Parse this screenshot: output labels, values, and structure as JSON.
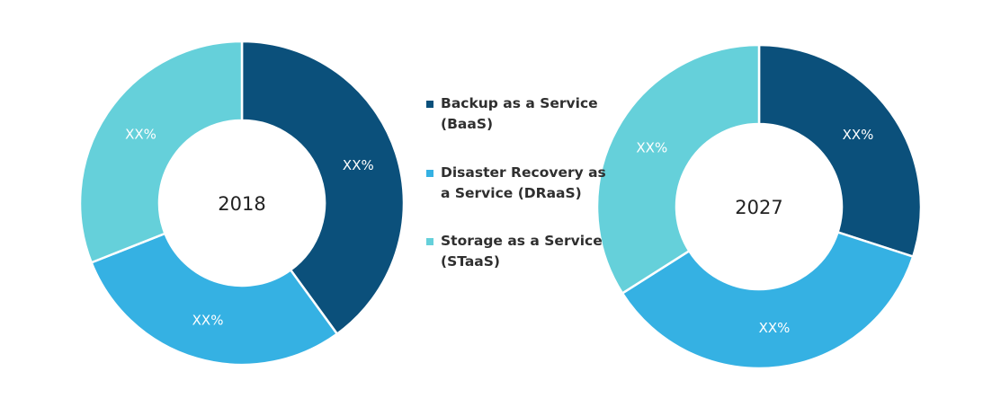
{
  "chart_data": [
    {
      "type": "donut",
      "center_label": "2018",
      "categories": [
        "Backup as a Service (BaaS)",
        "Disaster Recovery as a Service (DRaaS)",
        "Storage as a Service (STaaS)"
      ],
      "values": [
        40,
        29,
        31
      ],
      "data_labels": [
        "XX%",
        "XX%",
        "XX%"
      ]
    },
    {
      "type": "donut",
      "center_label": "2027",
      "categories": [
        "Backup as a Service (BaaS)",
        "Disaster Recovery as a Service (DRaaS)",
        "Storage as a Service (STaaS)"
      ],
      "values": [
        30,
        36,
        34
      ],
      "data_labels": [
        "XX%",
        "XX%",
        "XX%"
      ]
    }
  ],
  "legend": [
    {
      "label": "Backup as a Service (BaaS)",
      "color": "#0b507b"
    },
    {
      "label": "Disaster Recovery as a Service (DRaaS)",
      "color": "#35b1e3"
    },
    {
      "label": "Storage as a Service (STaaS)",
      "color": "#65d0da"
    }
  ],
  "colors": [
    "#0b507b",
    "#35b1e3",
    "#65d0da"
  ]
}
